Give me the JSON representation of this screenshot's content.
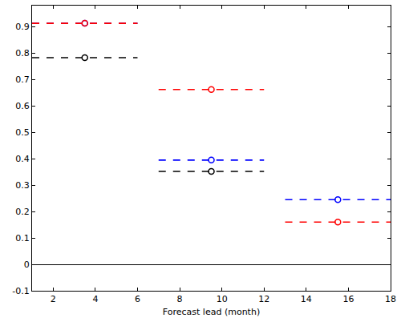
{
  "chart_data": {
    "type": "line",
    "x_label": "Forecast lead (month)",
    "x": [
      3.5,
      9.5,
      15.5
    ],
    "x_start": [
      1,
      7,
      13
    ],
    "x_end": [
      6,
      12,
      18
    ],
    "series": [
      {
        "color": "#0000ff",
        "values": [
          0.913,
          0.395,
          0.245
        ],
        "marker": "circle-open",
        "line_style": "dash"
      },
      {
        "color": "#000000",
        "values": [
          0.783,
          0.352,
          null
        ],
        "marker": "circle-open",
        "line_style": "dash"
      },
      {
        "color": "#ff0000",
        "values": [
          0.913,
          0.662,
          0.16
        ],
        "marker": "circle-open",
        "line_style": "dash"
      }
    ],
    "xlim": [
      1,
      18
    ],
    "xticks": [
      2,
      4,
      6,
      8,
      10,
      12,
      14,
      16,
      18
    ],
    "ylim": [
      -0.1,
      0.98
    ],
    "yticks": [
      -0.1,
      0,
      0.1,
      0.2,
      0.3,
      0.4,
      0.5,
      0.6,
      0.7,
      0.8,
      0.9
    ],
    "grid": false
  }
}
